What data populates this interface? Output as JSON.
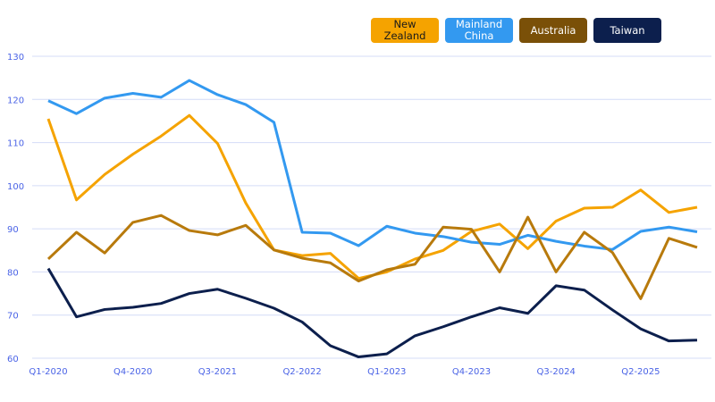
{
  "chart_data": {
    "type": "line",
    "categories": [
      "Q1-2020",
      "Q2-2020",
      "Q3-2020",
      "Q4-2020",
      "Q1-2021",
      "Q2-2021",
      "Q3-2021",
      "Q4-2021",
      "Q1-2022",
      "Q2-2022",
      "Q3-2022",
      "Q4-2022",
      "Q1-2023",
      "Q2-2023",
      "Q3-2023",
      "Q4-2023",
      "Q1-2024",
      "Q2-2024",
      "Q3-2024",
      "Q4-2024",
      "Q1-2025",
      "Q2-2025",
      "Q3-2025",
      "Q4-2025"
    ],
    "x_tick_labels": [
      "Q1-2020",
      "Q4-2020",
      "Q3-2021",
      "Q2-2022",
      "Q1-2023",
      "Q4-2023",
      "Q3-2024",
      "Q2-2025"
    ],
    "y_ticks": [
      60,
      70,
      80,
      90,
      100,
      110,
      120,
      130
    ],
    "ylim": [
      60,
      130
    ],
    "grid": true,
    "legend_placement": "top-right",
    "series": [
      {
        "name": "New Zealand",
        "legend_label": "New\nZealand",
        "color": "#f5a300",
        "text_color": "#1a1a1a",
        "values": [
          115.5,
          96.7,
          102.6,
          107.3,
          111.5,
          116.3,
          109.8,
          96,
          85.1,
          83.8,
          84.3,
          78.5,
          80,
          83,
          85,
          89.4,
          91.1,
          85.4,
          91.8,
          94.8,
          95,
          99,
          93.8,
          95
        ]
      },
      {
        "name": "Mainland China",
        "legend_label": "Mainland\nChina",
        "color": "#3399f0",
        "text_color": "#ffffff",
        "values": [
          119.7,
          116.7,
          120.3,
          121.4,
          120.5,
          124.4,
          121.1,
          118.8,
          114.7,
          89.2,
          89,
          86.1,
          90.6,
          89,
          88.2,
          86.9,
          86.4,
          88.5,
          87.1,
          86,
          85.2,
          89.4,
          90.4,
          89.3
        ]
      },
      {
        "name": "Australia",
        "legend_label": "Australia",
        "color": "#b87a0c",
        "legend_color": "#7a5008",
        "text_color": "#ffffff",
        "values": [
          83,
          89.2,
          84.4,
          91.5,
          93.1,
          89.6,
          88.6,
          90.8,
          85.1,
          83.2,
          82.1,
          77.9,
          80.5,
          81.8,
          90.4,
          89.9,
          80,
          92.7,
          80,
          89.2,
          84.5,
          73.8,
          87.8,
          85.7
        ]
      },
      {
        "name": "Taiwan",
        "legend_label": "Taiwan",
        "color": "#0c1f4d",
        "text_color": "#ffffff",
        "values": [
          80.8,
          69.6,
          71.3,
          71.8,
          72.7,
          75,
          76,
          73.9,
          71.6,
          68.4,
          62.9,
          60.3,
          61,
          65.2,
          67.3,
          69.6,
          71.7,
          70.4,
          76.8,
          75.8,
          71.2,
          66.8,
          64,
          64.2
        ]
      }
    ]
  }
}
